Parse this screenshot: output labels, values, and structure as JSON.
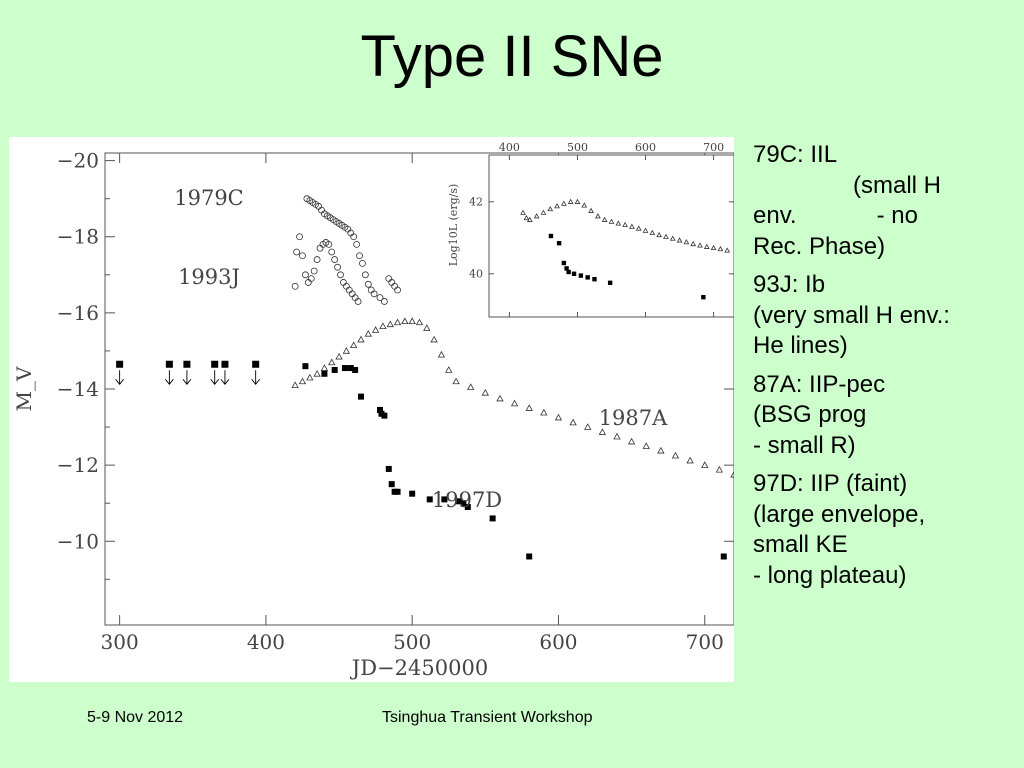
{
  "title": "Type II SNe",
  "footer": {
    "date": "5-9 Nov 2012",
    "event": "Tsinghua Transient Workshop"
  },
  "notes": [
    {
      "lines": [
        "79C: IIL",
        "(small H",
        "env.            - no",
        "Rec. Phase)"
      ]
    },
    {
      "lines": [
        "93J: Ib",
        "(very small H env.:",
        "He lines)"
      ]
    },
    {
      "lines": [
        "87A: IIP-pec",
        "(BSG prog",
        "- small R)"
      ]
    },
    {
      "lines": [
        "97D: IIP (faint)",
        "(large envelope,",
        "small KE",
        "- long plateau)"
      ]
    }
  ],
  "chart_data": [
    {
      "type": "scatter",
      "xlabel": "JD−2450000",
      "ylabel": "M_V",
      "xlim": [
        290,
        720
      ],
      "ylim": [
        -7.8,
        -20.2
      ],
      "y_inverted": true,
      "xticks": [
        300,
        400,
        500,
        600,
        700
      ],
      "xtick_labels": [
        "300",
        "400",
        "500",
        "600",
        "700"
      ],
      "yticks": [
        -20,
        -18,
        -16,
        -14,
        -12,
        -10
      ],
      "ytick_labels": [
        "−20",
        "−18",
        "−16",
        "−14",
        "−12",
        "−10"
      ],
      "labels": [
        "1979C",
        "1993J",
        "1987A",
        "1997D"
      ],
      "series": [
        {
          "name": "1979C",
          "marker": "open-circle",
          "x": [
            428,
            430,
            432,
            434,
            436,
            438,
            440,
            442,
            444,
            446,
            448,
            450,
            452,
            454,
            456,
            458,
            460,
            462,
            464,
            466,
            468,
            470,
            472,
            474,
            478,
            481,
            484,
            486,
            488,
            490
          ],
          "y": [
            -19.0,
            -18.95,
            -18.9,
            -18.85,
            -18.8,
            -18.7,
            -18.6,
            -18.55,
            -18.5,
            -18.45,
            -18.4,
            -18.35,
            -18.3,
            -18.25,
            -18.2,
            -18.1,
            -18.0,
            -17.8,
            -17.5,
            -17.3,
            -17.0,
            -16.75,
            -16.6,
            -16.5,
            -16.4,
            -16.3,
            -16.9,
            -16.8,
            -16.7,
            -16.6
          ]
        },
        {
          "name": "1993J",
          "marker": "open-circle",
          "x": [
            420,
            421,
            423,
            425,
            427,
            429,
            431,
            433,
            435,
            437,
            439,
            441,
            443,
            445,
            447,
            449,
            451,
            453,
            455,
            457,
            459,
            461,
            463
          ],
          "y": [
            -16.7,
            -17.6,
            -18.0,
            -17.5,
            -17.0,
            -16.8,
            -16.9,
            -17.1,
            -17.4,
            -17.7,
            -17.8,
            -17.85,
            -17.8,
            -17.6,
            -17.4,
            -17.2,
            -17.0,
            -16.8,
            -16.7,
            -16.6,
            -16.5,
            -16.4,
            -16.3
          ]
        },
        {
          "name": "1987A",
          "marker": "open-triangle",
          "x": [
            420,
            425,
            430,
            435,
            440,
            445,
            450,
            455,
            460,
            465,
            470,
            475,
            480,
            485,
            490,
            495,
            500,
            505,
            510,
            515,
            520,
            525,
            530,
            540,
            550,
            560,
            570,
            580,
            590,
            600,
            610,
            620,
            630,
            640,
            650,
            660,
            670,
            680,
            690,
            700,
            710,
            720
          ],
          "y": [
            -14.1,
            -14.2,
            -14.3,
            -14.4,
            -14.55,
            -14.7,
            -14.85,
            -15.0,
            -15.15,
            -15.3,
            -15.45,
            -15.55,
            -15.65,
            -15.7,
            -15.75,
            -15.78,
            -15.78,
            -15.75,
            -15.6,
            -15.3,
            -14.9,
            -14.5,
            -14.2,
            -14.05,
            -13.9,
            -13.75,
            -13.62,
            -13.5,
            -13.38,
            -13.25,
            -13.12,
            -13.0,
            -12.87,
            -12.75,
            -12.62,
            -12.5,
            -12.38,
            -12.25,
            -12.12,
            -12.0,
            -11.88,
            -11.75
          ]
        },
        {
          "name": "1997D",
          "marker": "filled-square",
          "x": [
            427,
            440,
            447,
            454,
            458,
            461,
            465,
            478,
            479,
            481,
            484,
            486,
            488,
            490,
            500,
            512,
            522,
            532,
            535,
            538,
            555,
            580,
            713
          ],
          "y": [
            -14.6,
            -14.4,
            -14.5,
            -14.55,
            -14.55,
            -14.5,
            -13.8,
            -13.45,
            -13.35,
            -13.3,
            -11.9,
            -11.5,
            -11.3,
            -11.3,
            -11.25,
            -11.1,
            -11.1,
            -11.05,
            -11.0,
            -10.9,
            -10.6,
            -9.6,
            -9.6
          ]
        },
        {
          "name": "upper limits",
          "marker": "filled-square-arrow",
          "x": [
            300,
            334,
            346,
            365,
            372,
            393
          ],
          "y": [
            -14.65,
            -14.65,
            -14.65,
            -14.65,
            -14.65,
            -14.65
          ]
        }
      ]
    },
    {
      "type": "scatter",
      "inset": true,
      "ylabel": "Log10L (erg/s)",
      "xlim": [
        370,
        730
      ],
      "ylim": [
        38.8,
        43.3
      ],
      "xticks": [
        400,
        500,
        600,
        700
      ],
      "xtick_labels": [
        "400",
        "500",
        "600",
        "700"
      ],
      "yticks": [
        40,
        42
      ],
      "ytick_labels": [
        "40",
        "42"
      ],
      "series": [
        {
          "name": "1987A",
          "marker": "open-triangle",
          "x": [
            420,
            425,
            430,
            440,
            450,
            460,
            470,
            480,
            490,
            500,
            510,
            520,
            530,
            540,
            550,
            560,
            570,
            580,
            590,
            600,
            610,
            620,
            630,
            640,
            650,
            660,
            670,
            680,
            690,
            700,
            710,
            720
          ],
          "y": [
            41.7,
            41.55,
            41.5,
            41.6,
            41.7,
            41.8,
            41.88,
            41.95,
            42.0,
            42.0,
            41.9,
            41.75,
            41.6,
            41.5,
            41.45,
            41.4,
            41.36,
            41.31,
            41.26,
            41.2,
            41.14,
            41.08,
            41.03,
            40.98,
            40.93,
            40.88,
            40.83,
            40.79,
            40.75,
            40.72,
            40.69,
            40.65
          ]
        },
        {
          "name": "1997D",
          "marker": "filled-square",
          "x": [
            461,
            473,
            480,
            484,
            487,
            495,
            505,
            515,
            525,
            548,
            685
          ],
          "y": [
            41.05,
            40.85,
            40.3,
            40.15,
            40.05,
            40.0,
            39.95,
            39.9,
            39.85,
            39.75,
            39.35
          ]
        }
      ]
    }
  ]
}
